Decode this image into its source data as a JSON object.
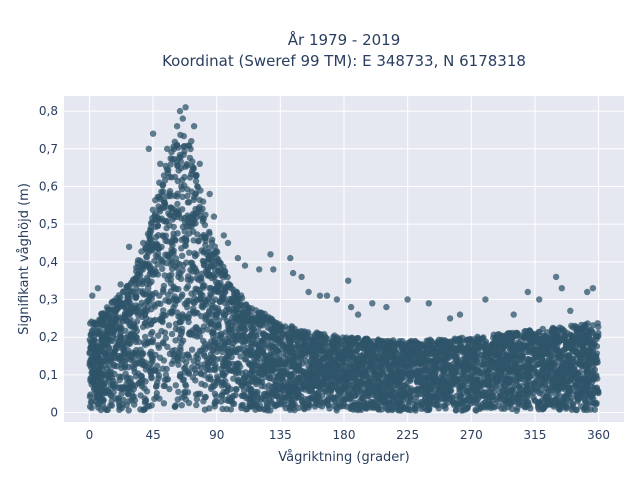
{
  "chart_data": {
    "type": "scatter",
    "title_line1": "År 1979 - 2019",
    "title_line2": "Koordinat (Sweref 99 TM): E 348733, N 6178318",
    "xlabel": "Vågriktning (grader)",
    "ylabel": "Signifikant våghöjd (m)",
    "xlim": [
      -18,
      378
    ],
    "ylim": [
      -0.025,
      0.84
    ],
    "x_ticks": [
      0,
      45,
      90,
      135,
      180,
      225,
      270,
      315,
      360
    ],
    "y_ticks": [
      0,
      0.1,
      0.2,
      0.3,
      0.4,
      0.5,
      0.6,
      0.7,
      0.8
    ],
    "y_tick_labels": [
      "0",
      "0,1",
      "0,2",
      "0,3",
      "0,4",
      "0,5",
      "0,6",
      "0,7",
      "0,8"
    ],
    "grid": true,
    "marker_color": "#2f5469",
    "plot_bg": "#e5e8f1",
    "envelope": {
      "x": [
        0,
        10,
        20,
        30,
        40,
        45,
        50,
        55,
        60,
        65,
        70,
        75,
        80,
        85,
        90,
        100,
        110,
        120,
        135,
        150,
        180,
        225,
        270,
        315,
        360
      ],
      "y_max": [
        0.24,
        0.27,
        0.31,
        0.36,
        0.47,
        0.55,
        0.62,
        0.68,
        0.72,
        0.74,
        0.73,
        0.65,
        0.57,
        0.49,
        0.43,
        0.34,
        0.3,
        0.27,
        0.24,
        0.22,
        0.2,
        0.19,
        0.2,
        0.22,
        0.24
      ]
    },
    "outliers": [
      {
        "x": 68,
        "y": 0.81
      },
      {
        "x": 64,
        "y": 0.8
      },
      {
        "x": 66,
        "y": 0.78
      },
      {
        "x": 62,
        "y": 0.76
      },
      {
        "x": 45,
        "y": 0.74
      },
      {
        "x": 42,
        "y": 0.7
      },
      {
        "x": 50,
        "y": 0.66
      },
      {
        "x": 55,
        "y": 0.7
      },
      {
        "x": 72,
        "y": 0.72
      },
      {
        "x": 74,
        "y": 0.76
      },
      {
        "x": 78,
        "y": 0.66
      },
      {
        "x": 85,
        "y": 0.58
      },
      {
        "x": 88,
        "y": 0.52
      },
      {
        "x": 95,
        "y": 0.47
      },
      {
        "x": 98,
        "y": 0.45
      },
      {
        "x": 105,
        "y": 0.41
      },
      {
        "x": 110,
        "y": 0.39
      },
      {
        "x": 120,
        "y": 0.38
      },
      {
        "x": 128,
        "y": 0.42
      },
      {
        "x": 130,
        "y": 0.38
      },
      {
        "x": 142,
        "y": 0.41
      },
      {
        "x": 144,
        "y": 0.37
      },
      {
        "x": 150,
        "y": 0.36
      },
      {
        "x": 155,
        "y": 0.32
      },
      {
        "x": 163,
        "y": 0.31
      },
      {
        "x": 168,
        "y": 0.31
      },
      {
        "x": 175,
        "y": 0.3
      },
      {
        "x": 183,
        "y": 0.35
      },
      {
        "x": 185,
        "y": 0.28
      },
      {
        "x": 190,
        "y": 0.26
      },
      {
        "x": 200,
        "y": 0.29
      },
      {
        "x": 210,
        "y": 0.28
      },
      {
        "x": 225,
        "y": 0.3
      },
      {
        "x": 240,
        "y": 0.29
      },
      {
        "x": 255,
        "y": 0.25
      },
      {
        "x": 262,
        "y": 0.26
      },
      {
        "x": 280,
        "y": 0.3
      },
      {
        "x": 300,
        "y": 0.26
      },
      {
        "x": 310,
        "y": 0.32
      },
      {
        "x": 318,
        "y": 0.3
      },
      {
        "x": 330,
        "y": 0.36
      },
      {
        "x": 334,
        "y": 0.33
      },
      {
        "x": 340,
        "y": 0.27
      },
      {
        "x": 352,
        "y": 0.32
      },
      {
        "x": 356,
        "y": 0.33
      },
      {
        "x": 6,
        "y": 0.33
      },
      {
        "x": 2,
        "y": 0.31
      },
      {
        "x": 22,
        "y": 0.34
      },
      {
        "x": 28,
        "y": 0.44
      },
      {
        "x": 38,
        "y": 0.45
      }
    ]
  }
}
